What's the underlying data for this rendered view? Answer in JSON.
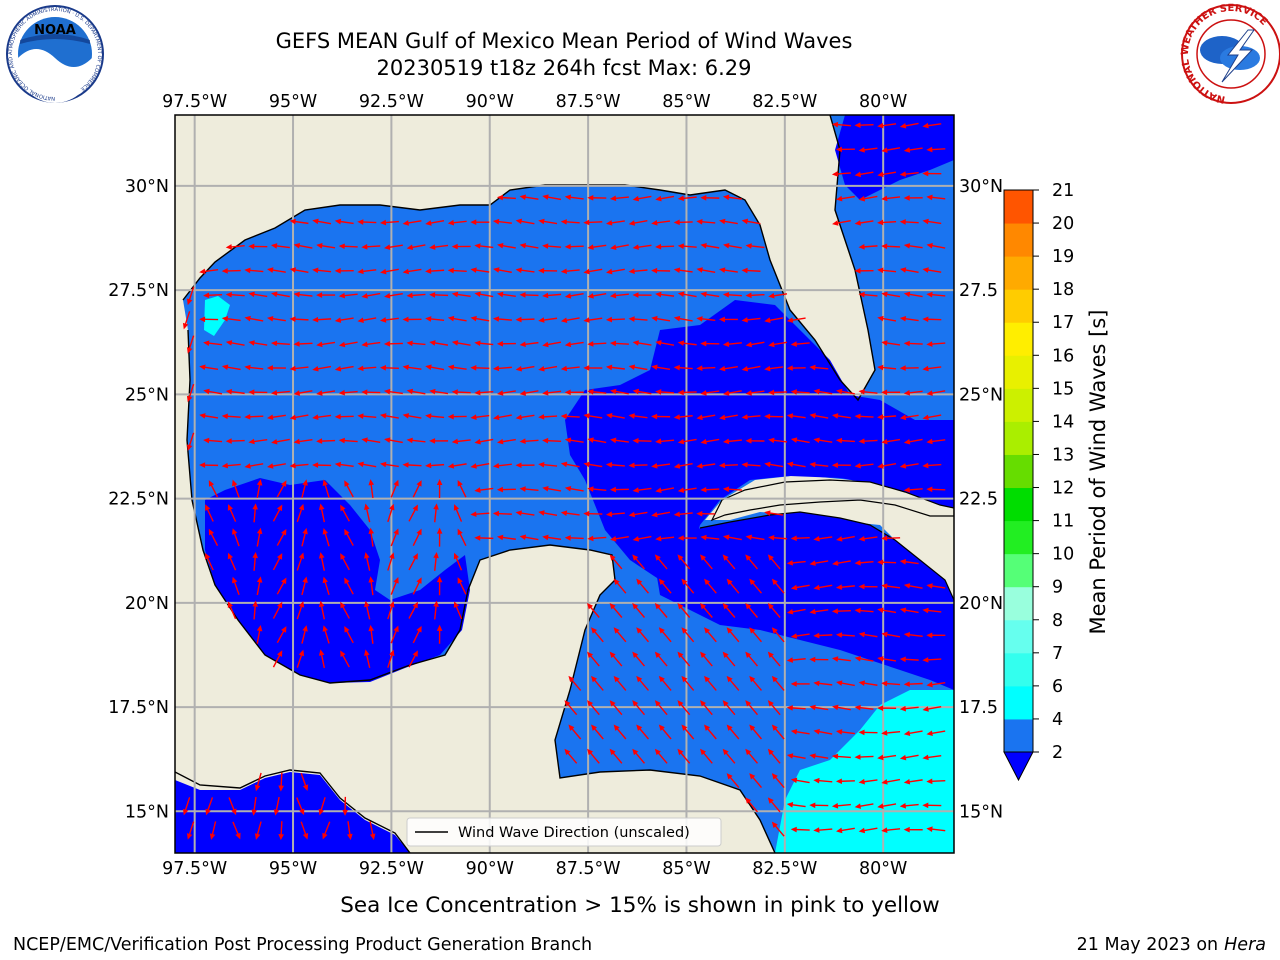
{
  "chart_data": {
    "type": "heatmap",
    "title_line1": "GEFS MEAN Gulf of Mexico Mean Period of Wind Waves",
    "title_line2": "20230519 t18z 264h fcst   Max: 6.29",
    "x_ticks": [
      "97.5°W",
      "95°W",
      "92.5°W",
      "90°W",
      "87.5°W",
      "85°W",
      "82.5°W",
      "80°W"
    ],
    "x_tick_values": [
      -97.5,
      -95,
      -92.5,
      -90,
      -87.5,
      -85,
      -82.5,
      -80
    ],
    "y_ticks_left": [
      "30°N",
      "27.5°N",
      "25°N",
      "22.5°N",
      "20°N",
      "17.5°N",
      "15°N"
    ],
    "y_ticks_right": [
      "30°N",
      "27.5",
      "25°N",
      "22.5",
      "20°N",
      "17.5",
      "15°N"
    ],
    "y_tick_values": [
      30,
      27.5,
      25,
      22.5,
      20,
      17.5,
      15
    ],
    "xlim": [
      -98,
      -78.2
    ],
    "ylim": [
      14,
      31.7
    ],
    "grid": true,
    "legend_label": "Wind Wave Direction (unscaled)",
    "legend_position": "bottom-center",
    "colorbar": {
      "label": "Mean Period of Wind Waves [s]",
      "levels": [
        2,
        4,
        6,
        7,
        8,
        9,
        10,
        11,
        12,
        13,
        14,
        15,
        16,
        17,
        18,
        19,
        20,
        21
      ],
      "tick_labels": [
        "2",
        "4",
        "6",
        "7",
        "8",
        "9",
        "10",
        "11",
        "12",
        "13",
        "14",
        "15",
        "16",
        "17",
        "18",
        "19",
        "20",
        "21"
      ],
      "colors": [
        "#1a74f0",
        "#00ffff",
        "#33ffee",
        "#66ffee",
        "#99ffdd",
        "#55ff77",
        "#22ee22",
        "#00dd00",
        "#66dd00",
        "#aaee00",
        "#ccf000",
        "#e8f000",
        "#ffee00",
        "#ffcc00",
        "#ffaa00",
        "#ff8800",
        "#ff5500",
        "#ff2200"
      ],
      "under_color": "#0000ff"
    },
    "period_bands_s": [
      {
        "range": "below 2",
        "color": "#0000ff",
        "regions": [
          "SW Gulf / Bay of Campeche",
          "SE Gulf to Florida Straits",
          "W Caribbean",
          "Gulf of Tehuantepec"
        ]
      },
      {
        "range": "2-4",
        "color": "#1a74f0",
        "regions": [
          "Central and N Gulf of Mexico",
          "Atlantic east of Florida",
          "NW Caribbean"
        ]
      },
      {
        "range": "4-6",
        "color": "#00ffff",
        "regions": [
          "SE Caribbean corner",
          "S Texas coast"
        ]
      }
    ],
    "max_value": 6.29,
    "wind_wave_direction": "mostly westward in the Gulf, northward in the Bay of Campeche and SW Caribbean, westward in the Caribbean"
  },
  "footer": {
    "sea_ice_note": "Sea Ice Concentration > 15% is shown in pink to yellow",
    "left_credit": "NCEP/EMC/Verification Post Processing Product Generation Branch",
    "date_text": "21 May 2023 on",
    "host": "Hera"
  },
  "logos": {
    "noaa_text": "NOAA",
    "noaa_ring": "NATIONAL OCEANIC AND ATMOSPHERIC ADMINISTRATION · U.S. DEPARTMENT OF COMMERCE",
    "nws_ring": "NATIONAL WEATHER SERVICE"
  },
  "colors": {
    "land": "#eeecdc",
    "ocean_default": "#1a74f0",
    "arrow": "#ff0000",
    "grid": "#b0b0b0"
  }
}
